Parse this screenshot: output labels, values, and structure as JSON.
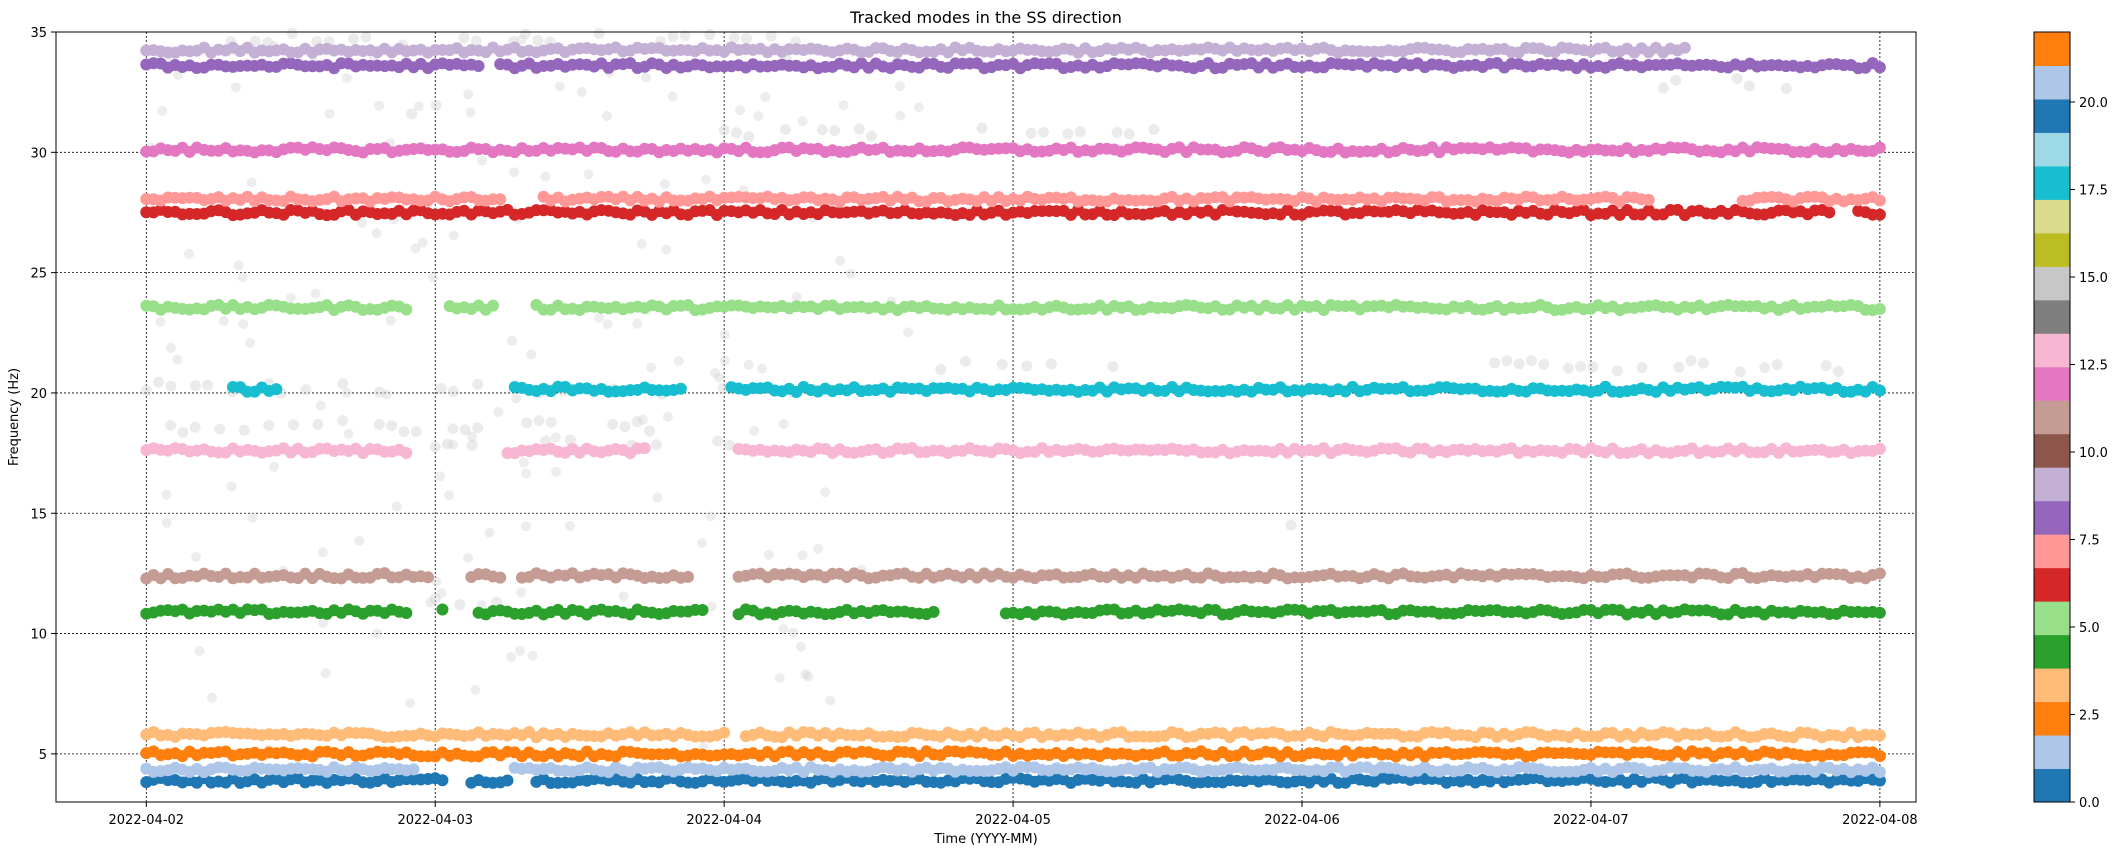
{
  "chart_data": {
    "type": "scatter",
    "title": "Tracked modes in the SS direction",
    "xlabel": "Time (YYYY-MM)",
    "ylabel": "Frequency (Hz)",
    "xlim": [
      "2022-04-01T16:30",
      "2022-04-08T03:00"
    ],
    "ylim": [
      3,
      35
    ],
    "x_ticks": [
      "2022-04-02",
      "2022-04-03",
      "2022-04-04",
      "2022-04-05",
      "2022-04-06",
      "2022-04-07",
      "2022-04-08"
    ],
    "y_ticks": [
      5,
      10,
      15,
      20,
      25,
      30,
      35
    ],
    "grid": true,
    "grid_style": "dotted",
    "colorbar": {
      "colormap": "tab20",
      "range": [
        0,
        22
      ],
      "ticks": [
        "0.0",
        "2.5",
        "5.0",
        "7.5",
        "10.0",
        "12.5",
        "15.0",
        "17.5",
        "20.0"
      ],
      "colors": [
        "#1f77b4",
        "#aec7e8",
        "#ff7f0e",
        "#ffbb78",
        "#2ca02c",
        "#98df8a",
        "#d62728",
        "#ff9896",
        "#9467bd",
        "#c5b0d5",
        "#8c564b",
        "#c49c94",
        "#e377c2",
        "#f7b6d2",
        "#7f7f7f",
        "#c7c7c7",
        "#bcbd22",
        "#dbdb8d",
        "#17becf",
        "#9edae5",
        "#1f77b4",
        "#aec7e8",
        "#ff7f0e"
      ]
    },
    "untracked_color": "#d3d3d3",
    "series": [
      {
        "mode": 0,
        "color": "#1f77b4",
        "freq_hz": 3.9,
        "gaps": [
          [
            "2022-04-03T00:45",
            "2022-04-03T02:30"
          ],
          [
            "2022-04-03T06:30",
            "2022-04-03T08:00"
          ]
        ]
      },
      {
        "mode": 1,
        "color": "#aec7e8",
        "freq_hz": 4.35,
        "gaps": [
          [
            "2022-04-02T22:30",
            "2022-04-03T06:00"
          ]
        ]
      },
      {
        "mode": 2,
        "color": "#ff7f0e",
        "freq_hz": 5.0,
        "gaps": []
      },
      {
        "mode": 3,
        "color": "#ffbb78",
        "freq_hz": 5.8,
        "gaps": [
          [
            "2022-04-04T00:30",
            "2022-04-04T01:30"
          ]
        ]
      },
      {
        "mode": 4,
        "color": "#2ca02c",
        "freq_hz": 10.9,
        "gaps": [
          [
            "2022-04-02T22:00",
            "2022-04-03T00:30"
          ],
          [
            "2022-04-03T00:45",
            "2022-04-03T03:00"
          ],
          [
            "2022-04-03T22:30",
            "2022-04-04T00:45"
          ],
          [
            "2022-04-04T18:00",
            "2022-04-04T23:00"
          ]
        ]
      },
      {
        "mode": 5,
        "color": "#98df8a",
        "freq_hz": 23.55,
        "gaps": [
          [
            "2022-04-02T22:00",
            "2022-04-03T01:00"
          ],
          [
            "2022-04-03T05:00",
            "2022-04-03T08:00"
          ]
        ]
      },
      {
        "mode": 6,
        "color": "#d62728",
        "freq_hz": 27.5,
        "gaps": [
          [
            "2022-04-07T20:00",
            "2022-04-07T22:00"
          ]
        ]
      },
      {
        "mode": 7,
        "color": "#ff9896",
        "freq_hz": 28.05,
        "gaps": [
          [
            "2022-04-03T06:00",
            "2022-04-03T08:30"
          ],
          [
            "2022-04-07T05:00",
            "2022-04-07T12:00"
          ]
        ]
      },
      {
        "mode": 8,
        "color": "#9467bd",
        "freq_hz": 33.6,
        "gaps": [
          [
            "2022-04-03T04:00",
            "2022-04-03T05:00"
          ]
        ]
      },
      {
        "mode": 9,
        "color": "#c5b0d5",
        "freq_hz": 34.25,
        "gaps": [
          [
            "2022-04-07T08:00",
            "2022-04-08T00:00"
          ]
        ]
      },
      {
        "mode": 11,
        "color": "#c49c94",
        "freq_hz": 12.4,
        "gaps": [
          [
            "2022-04-03T00:00",
            "2022-04-03T02:30"
          ],
          [
            "2022-04-03T06:00",
            "2022-04-03T07:00"
          ],
          [
            "2022-04-03T21:30",
            "2022-04-04T00:45"
          ]
        ]
      },
      {
        "mode": 12,
        "color": "#e377c2",
        "freq_hz": 30.1,
        "gaps": []
      },
      {
        "mode": 13,
        "color": "#f7b6d2",
        "freq_hz": 17.6,
        "gaps": [
          [
            "2022-04-02T22:00",
            "2022-04-03T05:30"
          ],
          [
            "2022-04-03T18:00",
            "2022-04-04T00:45"
          ]
        ]
      },
      {
        "mode": 18,
        "color": "#17becf",
        "freq_hz": 20.15,
        "gaps": [
          [
            "2022-04-02T00:00",
            "2022-04-02T07:00"
          ],
          [
            "2022-04-02T11:00",
            "2022-04-03T06:00"
          ],
          [
            "2022-04-03T21:00",
            "2022-04-04T00:30"
          ]
        ]
      }
    ],
    "untracked_bands": [
      {
        "freq_hz": 20.2,
        "from": "2022-04-02T00:00",
        "to": "2022-04-04T00:00"
      },
      {
        "freq_hz": 18.6,
        "from": "2022-04-02T01:00",
        "to": "2022-04-03T18:00"
      },
      {
        "freq_hz": 17.9,
        "from": "2022-04-03T00:00",
        "to": "2022-04-04T02:00"
      },
      {
        "freq_hz": 34.7,
        "from": "2022-04-02T06:00",
        "to": "2022-04-04T06:00"
      },
      {
        "freq_hz": 30.8,
        "from": "2022-04-04T00:00",
        "to": "2022-04-05T12:00"
      },
      {
        "freq_hz": 21.1,
        "from": "2022-04-04T18:00",
        "to": "2022-04-05T12:00"
      },
      {
        "freq_hz": 21.1,
        "from": "2022-04-06T16:00",
        "to": "2022-04-07T22:00"
      },
      {
        "freq_hz": 14.7,
        "from": "2022-04-05T18:00",
        "to": "2022-04-06T00:00"
      },
      {
        "freq_hz": 32.9,
        "from": "2022-04-07T05:00",
        "to": "2022-04-07T22:00"
      },
      {
        "freq_hz": 31.8,
        "from": "2022-04-02T20:00",
        "to": "2022-04-03T04:00"
      },
      {
        "freq_hz": 11.3,
        "from": "2022-04-03T00:00",
        "to": "2022-04-03T06:00"
      }
    ]
  }
}
